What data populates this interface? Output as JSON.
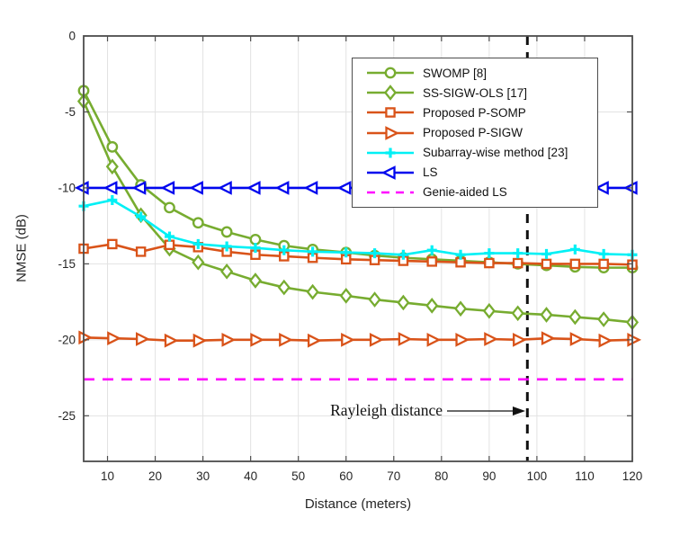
{
  "figure": {
    "background": "#ffffff",
    "frame_color": "#4d4d4d",
    "grid_color": "#e2e2e2",
    "tick_label_color": "#262626"
  },
  "chart_data": {
    "type": "line",
    "title": "",
    "xlabel": "Distance (meters)",
    "ylabel": "NMSE (dB)",
    "xlim": [
      5,
      120
    ],
    "ylim": [
      -28,
      0
    ],
    "x_ticks": [
      10,
      20,
      30,
      40,
      50,
      60,
      70,
      80,
      90,
      100,
      110,
      120
    ],
    "y_ticks": [
      0,
      -5,
      -10,
      -15,
      -20,
      -25
    ],
    "grid": true,
    "legend_position": "upper right inside",
    "x": [
      5,
      11,
      17,
      23,
      29,
      35,
      41,
      47,
      53,
      60,
      66,
      72,
      78,
      84,
      90,
      96,
      102,
      108,
      114,
      120
    ],
    "series": [
      {
        "name": "SWOMP [8]",
        "color": "#77AC30",
        "marker": "circle",
        "dash": false,
        "values": [
          -3.6,
          -7.3,
          -9.8,
          -11.3,
          -12.3,
          -12.9,
          -13.4,
          -13.8,
          -14.05,
          -14.25,
          -14.45,
          -14.6,
          -14.7,
          -14.8,
          -14.9,
          -15.0,
          -15.1,
          -15.2,
          -15.25,
          -15.25
        ]
      },
      {
        "name": "SS-SIGW-OLS [17]",
        "color": "#77AC30",
        "marker": "diamond",
        "dash": false,
        "values": [
          -4.3,
          -8.6,
          -11.8,
          -14.0,
          -14.9,
          -15.5,
          -16.1,
          -16.55,
          -16.85,
          -17.1,
          -17.35,
          -17.55,
          -17.75,
          -17.95,
          -18.1,
          -18.25,
          -18.35,
          -18.5,
          -18.65,
          -18.85
        ]
      },
      {
        "name": "Proposed P-SOMP",
        "color": "#D95319",
        "marker": "square",
        "dash": false,
        "values": [
          -14.0,
          -13.7,
          -14.2,
          -13.75,
          -13.9,
          -14.2,
          -14.4,
          -14.5,
          -14.6,
          -14.7,
          -14.75,
          -14.8,
          -14.85,
          -14.9,
          -14.95,
          -14.95,
          -15.0,
          -15.0,
          -15.0,
          -15.05
        ]
      },
      {
        "name": "Proposed P-SIGW",
        "color": "#D95319",
        "marker": "triangle-right",
        "dash": false,
        "values": [
          -19.85,
          -19.9,
          -19.95,
          -20.05,
          -20.05,
          -20.0,
          -20.0,
          -20.0,
          -20.05,
          -20.0,
          -20.0,
          -19.95,
          -20.0,
          -20.0,
          -19.95,
          -20.0,
          -19.9,
          -19.95,
          -20.05,
          -20.0
        ]
      },
      {
        "name": "Subarray-wise method [23]",
        "color": "#00F0F5",
        "marker": "plus",
        "dash": false,
        "values": [
          -11.2,
          -10.8,
          -11.9,
          -13.2,
          -13.7,
          -13.85,
          -13.95,
          -14.1,
          -14.2,
          -14.25,
          -14.3,
          -14.4,
          -14.1,
          -14.4,
          -14.3,
          -14.3,
          -14.35,
          -14.05,
          -14.35,
          -14.4
        ]
      },
      {
        "name": "LS",
        "color": "#0006EE",
        "marker": "triangle-left",
        "dash": false,
        "values": [
          -10,
          -10,
          -10,
          -10,
          -10,
          -10,
          -10,
          -10,
          -10,
          -10,
          -10,
          -10,
          -10,
          -10,
          -10,
          -10,
          -10,
          -10,
          -10,
          -10
        ]
      },
      {
        "name": "Genie-aided LS",
        "color": "#FF00FF",
        "marker": "none",
        "dash": true,
        "values": [
          -22.6,
          -22.6,
          -22.6,
          -22.6,
          -22.6,
          -22.6,
          -22.6,
          -22.6,
          -22.6,
          -22.6,
          -22.6,
          -22.6,
          -22.6,
          -22.6,
          -22.6,
          -22.6,
          -22.6,
          -22.6,
          -22.6,
          -22.6
        ]
      }
    ],
    "annotation": {
      "text": "Rayleigh distance",
      "arrow_to_x": 98
    },
    "reference_line": {
      "x": 98,
      "style": "dashed",
      "color": "#111111"
    }
  }
}
